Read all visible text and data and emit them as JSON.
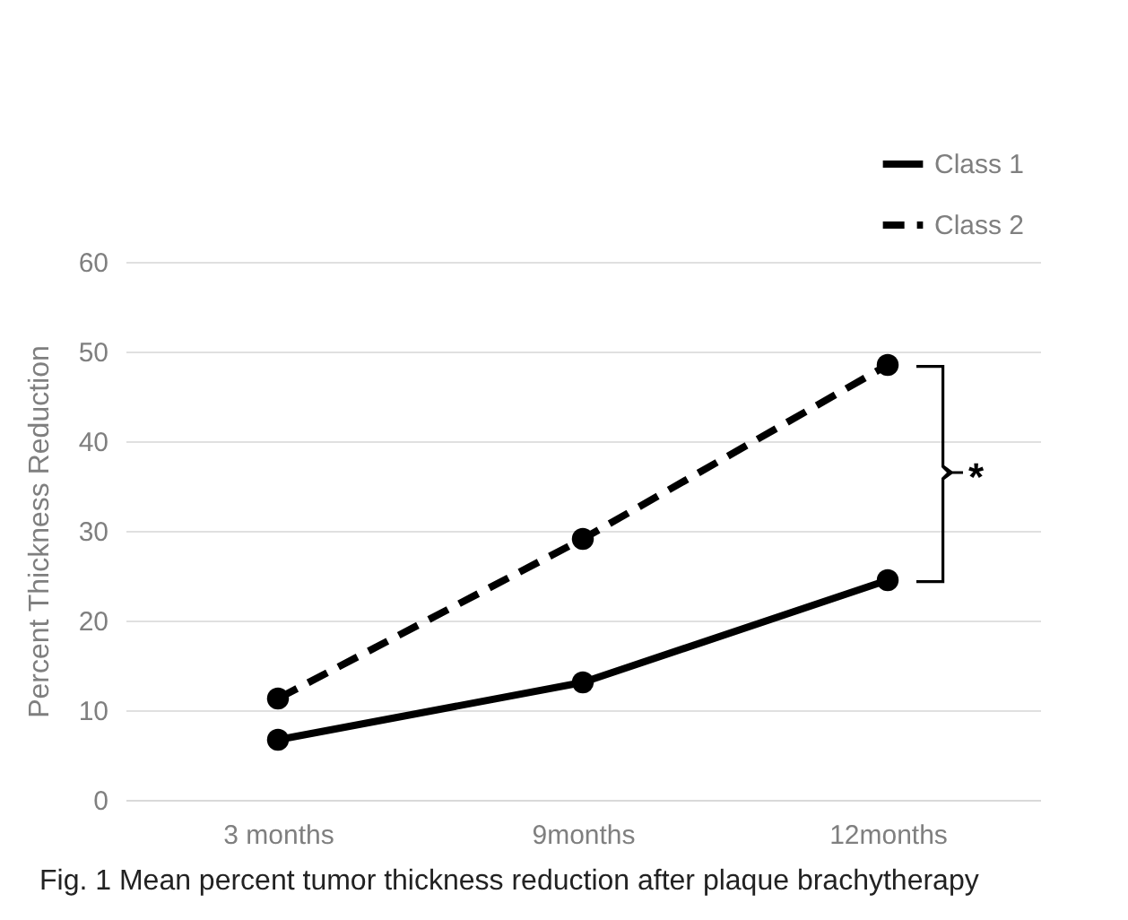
{
  "chart_data": {
    "type": "line",
    "categories": [
      "3 months",
      "9months",
      "12months"
    ],
    "ylabel": "Percent Thickness Reduction",
    "series": [
      {
        "name": "Class 1",
        "color": "#000000",
        "line_style": "solid",
        "values": [
          6.7,
          13.1,
          24.5
        ]
      },
      {
        "name": "Class 2",
        "color": "#000000",
        "line_style": "dashed",
        "values": [
          11.3,
          29.1,
          48.5
        ]
      }
    ],
    "ylim": [
      0,
      60
    ],
    "yticks": [
      0,
      10,
      20,
      30,
      40,
      50,
      60
    ],
    "grid": "y",
    "legend": "top right",
    "marker": "circle",
    "annotations": [
      "*",
      "Fig. 1  Mean percent tumor thickness reduction after plaque brachytherapy"
    ]
  }
}
